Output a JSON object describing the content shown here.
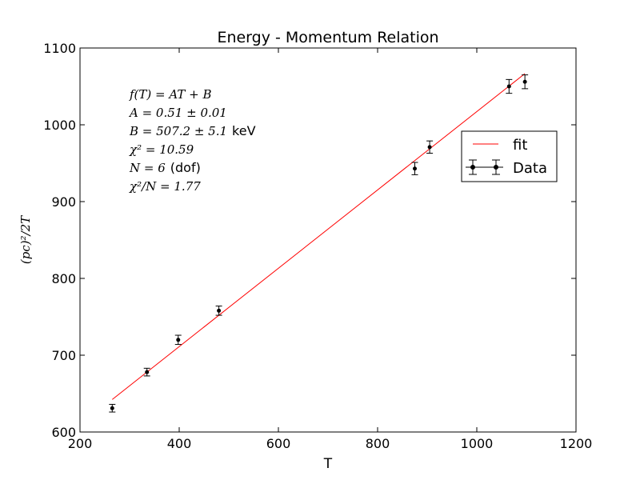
{
  "chart_data": {
    "type": "scatter",
    "title": "Energy - Momentum Relation",
    "xlabel": "T",
    "ylabel": "(pc)²/2T",
    "xlim": [
      200,
      1200
    ],
    "ylim": [
      600,
      1100
    ],
    "xticks": [
      "200",
      "400",
      "600",
      "800",
      "1000",
      "1200"
    ],
    "yticks": [
      "600",
      "700",
      "800",
      "900",
      "1000",
      "1100"
    ],
    "grid": false,
    "legend_position": "right",
    "colors": {
      "fit": "#ff0000",
      "data": "#000000"
    },
    "series": [
      {
        "name": "Data",
        "kind": "errorbar",
        "x": [
          265,
          335,
          398,
          480,
          875,
          905,
          1065,
          1097
        ],
        "y": [
          631,
          678,
          720,
          758,
          943,
          971,
          1050,
          1056
        ],
        "yerr": [
          5,
          5,
          6,
          6,
          8,
          8,
          9,
          9
        ],
        "xerr": [
          0,
          0,
          0,
          0,
          0,
          0,
          0,
          0
        ]
      },
      {
        "name": "fit",
        "kind": "line",
        "x": [
          265,
          1097
        ],
        "y": [
          642.35,
          1066.67
        ]
      }
    ],
    "annotations": [
      "f(T) = AT + B",
      "A = 0.51 ± 0.01",
      "B = 507.2 ± 5.1",
      "keV",
      "χ² = 10.59",
      "N = 6",
      "(dof)",
      "χ²/N = 1.77"
    ]
  }
}
